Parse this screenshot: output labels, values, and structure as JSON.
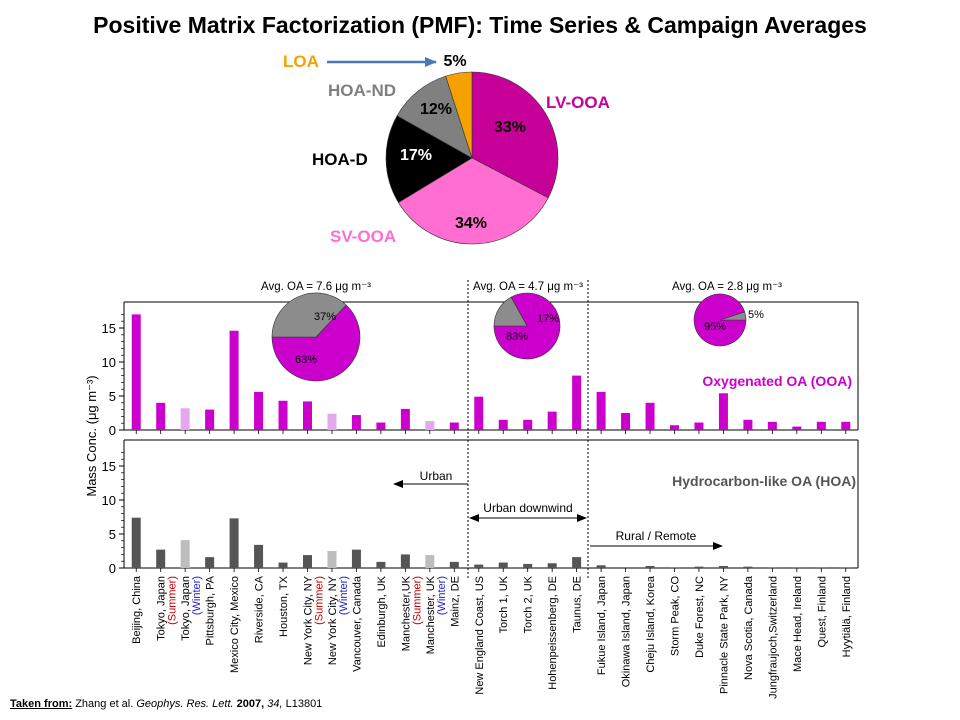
{
  "title": "Positive Matrix Factorization (PMF): Time Series & Campaign Averages",
  "citation": {
    "prefix": "Taken from:",
    "authors": "Zhang et al.",
    "journal": "Geophys. Res. Lett.",
    "year": "2007,",
    "volume": "34,",
    "article": "L13801"
  },
  "chart_data": [
    {
      "type": "pie",
      "labels": [
        "LV-OOA",
        "SV-OOA",
        "HOA-D",
        "HOA-ND",
        "LOA"
      ],
      "values": [
        33,
        34,
        17,
        12,
        5
      ],
      "value_labels": [
        "33%",
        "34%",
        "17%",
        "12%",
        "5%"
      ],
      "colors": [
        "#c8009a",
        "#ff6ed0",
        "#000000",
        "#808080",
        "#f5a100"
      ],
      "label_colors": [
        "#c8009a",
        "#ff6ed0",
        "#000000",
        "#808080",
        "#f5a100"
      ]
    },
    {
      "type": "bar",
      "ylabel": "Mass Conc. (μg m⁻³)",
      "ylim": [
        0,
        18
      ],
      "yticks": [
        0,
        5,
        10,
        15
      ],
      "categories": [
        {
          "name": "Beijing, China"
        },
        {
          "name": "Tokyo, Japan",
          "season": "(Summer)"
        },
        {
          "name": "Tokyo, Japan",
          "season": "(Winter)"
        },
        {
          "name": "Pittsburgh, PA"
        },
        {
          "name": "Mexico City, Mexico"
        },
        {
          "name": "Riverside, CA"
        },
        {
          "name": "Houston, TX"
        },
        {
          "name": "New York City, NY",
          "season": "(Summer)"
        },
        {
          "name": "New York City, NY",
          "season": "(Winter)"
        },
        {
          "name": "Vancouver, Canada"
        },
        {
          "name": "Edinburgh, UK"
        },
        {
          "name": "Manchester,UK",
          "season": "(Summer)"
        },
        {
          "name": "Manchester, UK",
          "season": "(Winter)"
        },
        {
          "name": "Mainz, DE"
        },
        {
          "name": "New England Coast, US"
        },
        {
          "name": "Torch 1, UK"
        },
        {
          "name": "Torch 2, UK"
        },
        {
          "name": "Hohenpeissenberg, DE"
        },
        {
          "name": "Taunus, DE"
        },
        {
          "name": "Fukue Island, Japan"
        },
        {
          "name": "Okinawa Island, Japan"
        },
        {
          "name": "Cheju Island, Korea"
        },
        {
          "name": "Storm Peak, CO"
        },
        {
          "name": "Duke Forest, NC"
        },
        {
          "name": "Pinnacle State Park, NY"
        },
        {
          "name": "Nova Scotia, Canada"
        },
        {
          "name": "Jungfraujoch,Switzerland"
        },
        {
          "name": "Mace Head, Ireland"
        },
        {
          "name": "Quest, Finland"
        },
        {
          "name": "Hyytiälä, Finland"
        }
      ],
      "series": [
        {
          "name": "Oxygenated OA (OOA)",
          "color": "#cc00cc",
          "light_color": "#e5a8ef",
          "values": [
            17.0,
            4.0,
            3.2,
            3.0,
            14.6,
            5.6,
            4.3,
            4.2,
            2.4,
            2.2,
            1.1,
            3.1,
            1.3,
            1.1,
            4.9,
            1.5,
            1.5,
            2.7,
            8.0,
            5.6,
            2.5,
            4.0,
            0.7,
            1.1,
            5.4,
            1.5,
            1.2,
            0.5,
            1.2,
            1.2
          ]
        },
        {
          "name": "Hydrocarbon-like OA (HOA)",
          "color": "#555555",
          "light_color": "#bdbdbd",
          "values": [
            7.4,
            2.7,
            4.1,
            1.6,
            7.3,
            3.4,
            0.8,
            1.9,
            2.5,
            2.7,
            0.9,
            2.0,
            1.9,
            0.9,
            0.5,
            0.8,
            0.6,
            0.7,
            1.6,
            0.4,
            0.0,
            0.3,
            0.1,
            0.2,
            0.3,
            0.2,
            0.1,
            0.1,
            0.1,
            0.1
          ]
        }
      ],
      "light_bars": [
        2,
        8,
        12
      ],
      "regions": [
        {
          "label": "Urban",
          "avg_label": "Avg. OA = 7.6 μg m⁻³",
          "pie": {
            "values": [
              63,
              37
            ],
            "labels": [
              "63%",
              "37%"
            ],
            "colors": [
              "#cc00cc",
              "#8c8c8c"
            ]
          }
        },
        {
          "label": "Urban downwind",
          "avg_label": "Avg. OA = 4.7 μg m⁻³",
          "pie": {
            "values": [
              83,
              17
            ],
            "labels": [
              "83%",
              "17%"
            ],
            "colors": [
              "#cc00cc",
              "#8c8c8c"
            ]
          }
        },
        {
          "label": "Rural / Remote",
          "avg_label": "Avg. OA = 2.8 μg m⁻³",
          "pie": {
            "values": [
              95,
              5
            ],
            "labels": [
              "95%",
              "5%"
            ],
            "colors": [
              "#cc00cc",
              "#8c8c8c"
            ]
          }
        }
      ]
    }
  ]
}
